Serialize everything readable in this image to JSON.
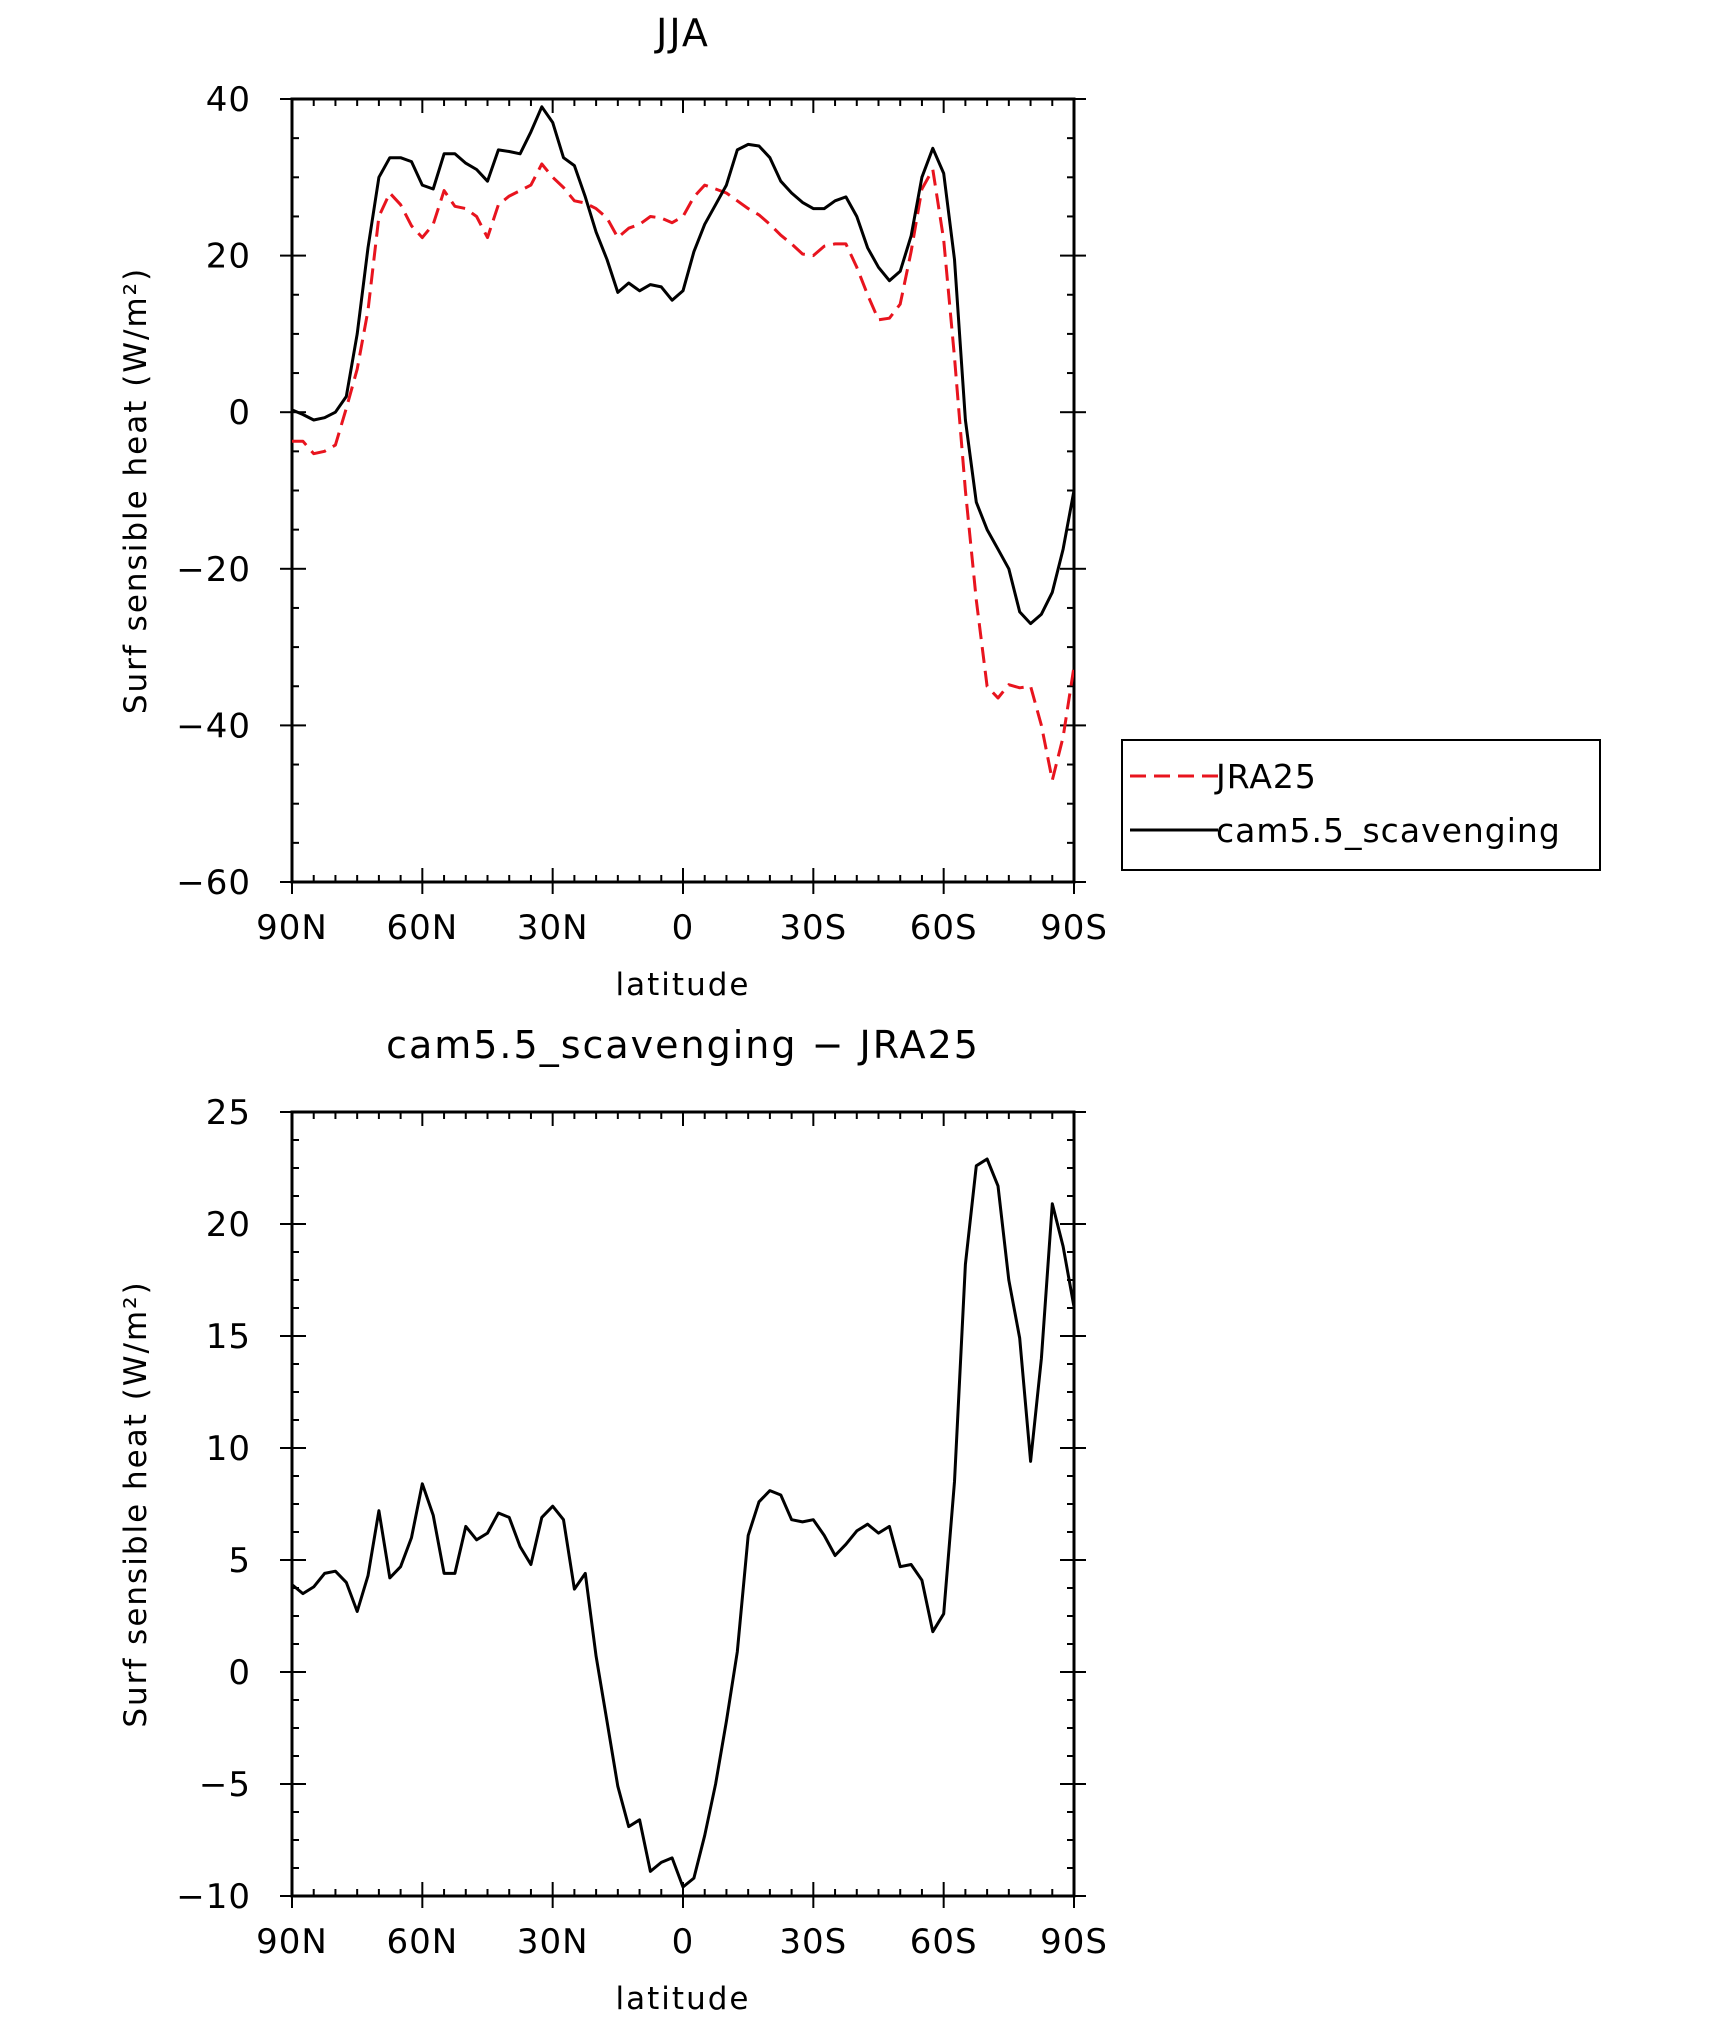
{
  "chart_data": [
    {
      "type": "line",
      "title": "JJA",
      "xlabel": "latitude",
      "ylabel": "Surf sensible heat (W/m²)",
      "xlim": [
        90,
        -90
      ],
      "ylim": [
        -60,
        40
      ],
      "x_ticks": [
        90,
        60,
        30,
        0,
        -30,
        -60,
        -90
      ],
      "x_tick_labels": [
        "90N",
        "60N",
        "30N",
        "0",
        "30S",
        "60S",
        "90S"
      ],
      "y_ticks": [
        -60,
        -40,
        -20,
        0,
        20,
        40
      ],
      "y_tick_labels": [
        "−60",
        "−40",
        "−20",
        "0",
        "20",
        "40"
      ],
      "legend": {
        "position": "right, outside"
      },
      "x": [
        90,
        87.5,
        85,
        82.5,
        80,
        77.5,
        75,
        72.5,
        70,
        67.5,
        65,
        62.5,
        60,
        57.5,
        55,
        52.5,
        50,
        47.5,
        45,
        42.5,
        40,
        37.5,
        35,
        32.5,
        30,
        27.5,
        25,
        22.5,
        20,
        17.5,
        15,
        12.5,
        10,
        7.5,
        5,
        2.5,
        0,
        -2.5,
        -5,
        -7.5,
        -10,
        -12.5,
        -15,
        -17.5,
        -20,
        -22.5,
        -25,
        -27.5,
        -30,
        -32.5,
        -35,
        -37.5,
        -40,
        -42.5,
        -45,
        -47.5,
        -50,
        -52.5,
        -55,
        -57.5,
        -60,
        -62.5,
        -65,
        -67.5,
        -70,
        -72.5,
        -75,
        -77.5,
        -80,
        -82.5,
        -85,
        -87.5,
        -90
      ],
      "series": [
        {
          "name": "JRA25",
          "color": "#e8141e",
          "style": "dashed",
          "values": [
            -3.7,
            -3.7,
            -5.3,
            -5.0,
            -4.2,
            0.5,
            5.5,
            13.0,
            25.0,
            28.0,
            26.5,
            23.8,
            22.3,
            24.0,
            28.3,
            26.3,
            26.0,
            25.0,
            22.3,
            26.5,
            27.6,
            28.3,
            29.0,
            31.7,
            30.0,
            28.7,
            27.0,
            26.7,
            26.0,
            24.8,
            22.3,
            23.5,
            24.0,
            25.0,
            24.8,
            24.2,
            25.0,
            27.5,
            29.0,
            28.5,
            28.0,
            27.0,
            26.0,
            25.2,
            24.0,
            22.6,
            21.5,
            20.2,
            20.0,
            21.2,
            21.5,
            21.5,
            18.5,
            15.0,
            11.8,
            12.0,
            13.8,
            20.5,
            28.5,
            31.0,
            22.0,
            7.0,
            -10.0,
            -24.0,
            -35.0,
            -36.5,
            -34.8,
            -35.2,
            -35.0,
            -40.0,
            -47.0,
            -41.5,
            -32.5
          ]
        },
        {
          "name": "cam5.5_scavenging",
          "color": "#000000",
          "style": "solid",
          "values": [
            0.3,
            -0.3,
            -1.0,
            -0.7,
            0.0,
            2.0,
            10.0,
            21.0,
            30.0,
            32.5,
            32.5,
            32.0,
            29.0,
            28.5,
            33.0,
            33.0,
            31.8,
            31.0,
            29.5,
            33.5,
            33.3,
            33.0,
            35.8,
            39.0,
            37.0,
            32.5,
            31.5,
            27.5,
            23.0,
            19.5,
            15.3,
            16.5,
            15.5,
            16.3,
            16.0,
            14.3,
            15.5,
            20.5,
            24.0,
            26.5,
            29.0,
            33.5,
            34.2,
            34.0,
            32.5,
            29.5,
            28.0,
            26.8,
            26.0,
            26.0,
            27.0,
            27.5,
            25.0,
            21.0,
            18.5,
            16.8,
            18.0,
            22.5,
            30.0,
            33.7,
            30.5,
            19.5,
            -1.0,
            -11.5,
            -15.0,
            -17.5,
            -20.0,
            -25.5,
            -27.0,
            -25.8,
            -23.0,
            -17.5,
            -10.0
          ]
        }
      ]
    },
    {
      "type": "line",
      "title": "cam5.5_scavenging − JRA25",
      "xlabel": "latitude",
      "ylabel": "Surf sensible heat (W/m²)",
      "xlim": [
        90,
        -90
      ],
      "ylim": [
        -10,
        25
      ],
      "x_ticks": [
        90,
        60,
        30,
        0,
        -30,
        -60,
        -90
      ],
      "x_tick_labels": [
        "90N",
        "60N",
        "30N",
        "0",
        "30S",
        "60S",
        "90S"
      ],
      "y_ticks": [
        -10,
        -5,
        0,
        5,
        10,
        15,
        20,
        25
      ],
      "y_tick_labels": [
        "−10",
        "−5",
        "0",
        "5",
        "10",
        "15",
        "20",
        "25"
      ],
      "x": [
        90,
        87.5,
        85,
        82.5,
        80,
        77.5,
        75,
        72.5,
        70,
        67.5,
        65,
        62.5,
        60,
        57.5,
        55,
        52.5,
        50,
        47.5,
        45,
        42.5,
        40,
        37.5,
        35,
        32.5,
        30,
        27.5,
        25,
        22.5,
        20,
        17.5,
        15,
        12.5,
        10,
        7.5,
        5,
        2.5,
        0,
        -2.5,
        -5,
        -7.5,
        -10,
        -12.5,
        -15,
        -17.5,
        -20,
        -22.5,
        -25,
        -27.5,
        -30,
        -32.5,
        -35,
        -37.5,
        -40,
        -42.5,
        -45,
        -47.5,
        -50,
        -52.5,
        -55,
        -57.5,
        -60,
        -62.5,
        -65,
        -67.5,
        -70,
        -72.5,
        -75,
        -77.5,
        -80,
        -82.5,
        -85,
        -87.5,
        -90
      ],
      "series": [
        {
          "color": "#000000",
          "style": "solid",
          "values": [
            3.9,
            3.5,
            3.8,
            4.4,
            4.5,
            4.0,
            2.7,
            4.3,
            7.2,
            4.2,
            4.7,
            6.0,
            8.4,
            7.0,
            4.4,
            4.4,
            6.5,
            5.9,
            6.2,
            7.1,
            6.9,
            5.6,
            4.8,
            6.9,
            7.4,
            6.8,
            3.7,
            4.4,
            0.7,
            -2.2,
            -5.1,
            -6.9,
            -6.6,
            -8.9,
            -8.5,
            -8.3,
            -9.6,
            -9.2,
            -7.3,
            -5.0,
            -2.2,
            0.9,
            6.1,
            7.6,
            8.1,
            7.9,
            6.8,
            6.7,
            6.8,
            6.1,
            5.2,
            5.7,
            6.3,
            6.6,
            6.2,
            6.5,
            4.7,
            4.8,
            4.1,
            1.8,
            2.6,
            8.5,
            18.2,
            22.6,
            22.9,
            21.7,
            17.5,
            14.9,
            9.4,
            14.0,
            20.9,
            19.0,
            16.3
          ]
        }
      ]
    }
  ]
}
